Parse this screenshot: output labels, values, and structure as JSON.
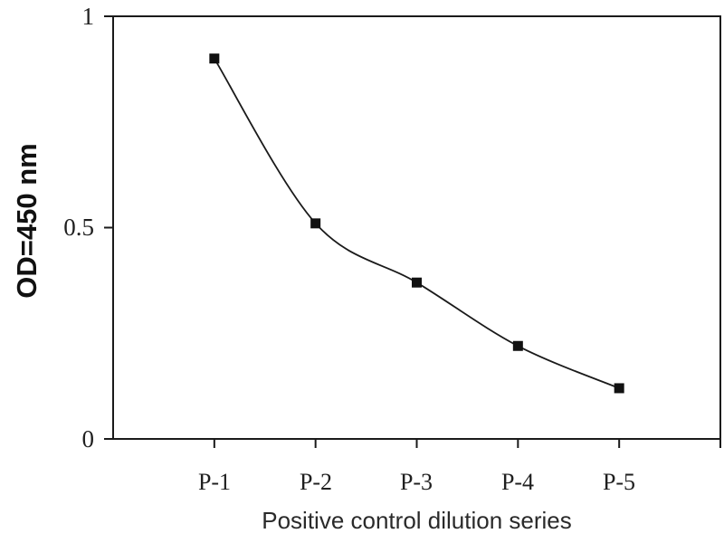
{
  "chart_data": {
    "type": "line",
    "smooth": true,
    "categories": [
      "P-1",
      "P-2",
      "P-3",
      "P-4",
      "P-5"
    ],
    "values": [
      0.9,
      0.51,
      0.37,
      0.22,
      0.12
    ],
    "title": "",
    "xlabel": "Positive control dilution series",
    "ylabel": "OD=450 nm",
    "ylim": [
      0,
      1
    ],
    "yticks": [
      {
        "value": 0,
        "label": "0"
      },
      {
        "value": 0.5,
        "label": "0.5"
      },
      {
        "value": 1,
        "label": "1"
      }
    ],
    "grid": false,
    "legend": "none",
    "marker": "square",
    "line_color": "#1a1a1a",
    "marker_color": "#111111",
    "background": "#ffffff"
  }
}
